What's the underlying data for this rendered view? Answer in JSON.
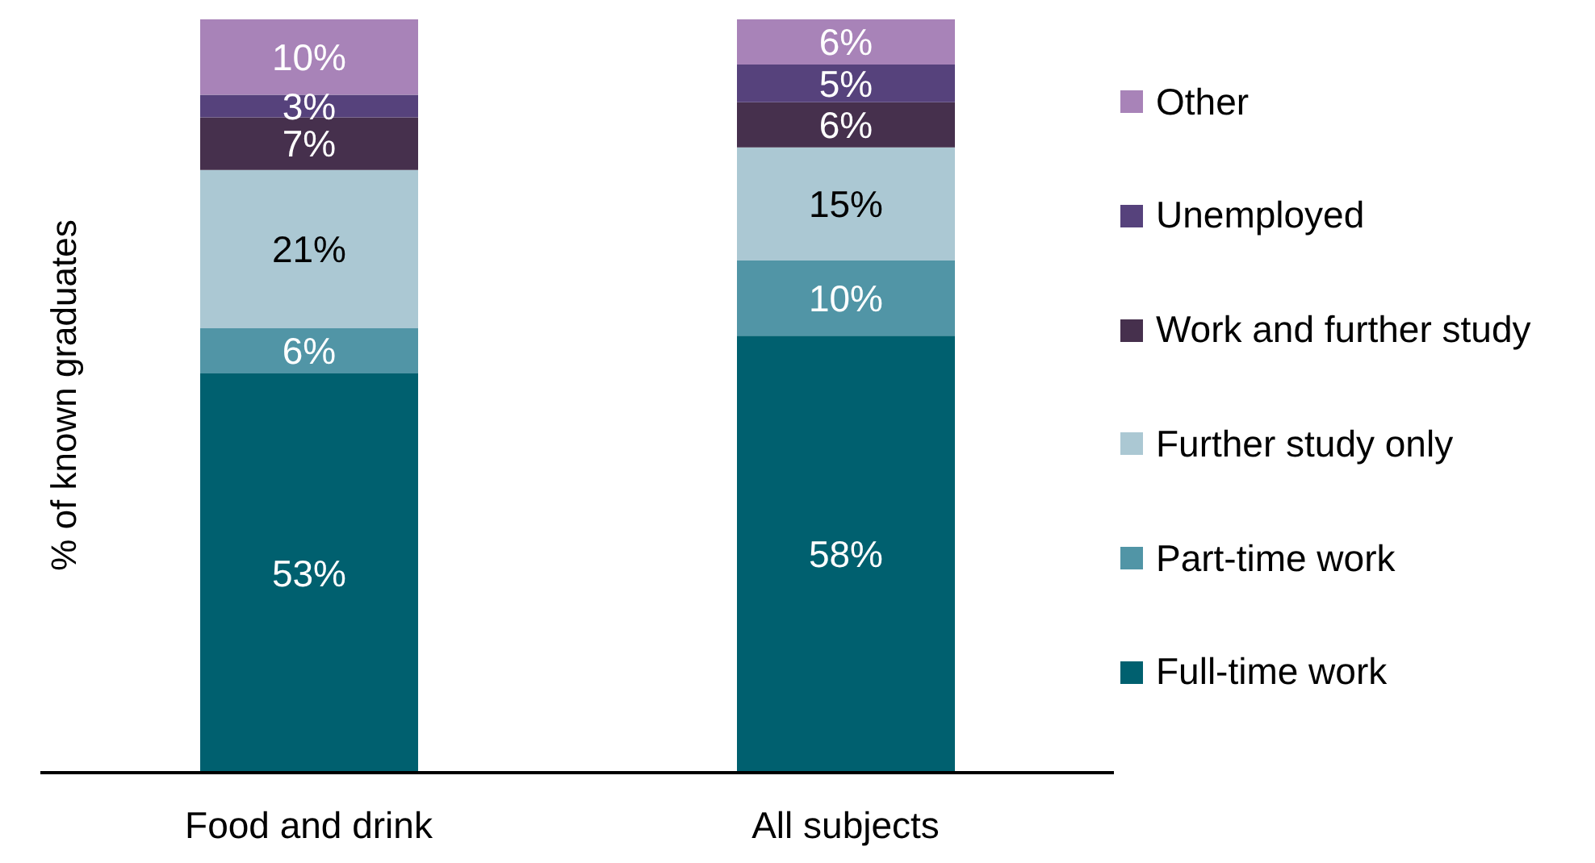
{
  "chart_data": {
    "type": "bar",
    "stacked": true,
    "ylabel": "% of known graduates",
    "categories": [
      "Food and drink",
      "All subjects"
    ],
    "series": [
      {
        "name": "Full-time work",
        "color": "#00606f",
        "values": [
          53,
          58
        ],
        "value_labels": [
          "53%",
          "58%"
        ]
      },
      {
        "name": "Part-time work",
        "color": "#5195a6",
        "values": [
          6,
          10
        ],
        "value_labels": [
          "6%",
          "10%"
        ]
      },
      {
        "name": "Further study only",
        "color": "#abc8d3",
        "values": [
          21,
          15
        ],
        "value_labels": [
          "21%",
          "15%"
        ]
      },
      {
        "name": "Work and further study",
        "color": "#46304d",
        "values": [
          7,
          6
        ],
        "value_labels": [
          "7%",
          "6%"
        ]
      },
      {
        "name": "Unemployed",
        "color": "#56427c",
        "values": [
          3,
          5
        ],
        "value_labels": [
          "3%",
          "5%"
        ]
      },
      {
        "name": "Other",
        "color": "#a883b8",
        "values": [
          10,
          6
        ],
        "value_labels": [
          "10%",
          "6%"
        ]
      }
    ],
    "ylim": [
      0,
      100
    ],
    "tick_labels": "x",
    "legend": "right"
  }
}
